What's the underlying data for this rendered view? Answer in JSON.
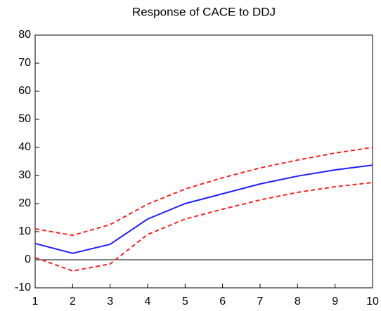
{
  "chart_data": {
    "type": "line",
    "title": "Response of CACE to DDJ",
    "x": [
      1,
      2,
      3,
      4,
      5,
      6,
      7,
      8,
      9,
      10
    ],
    "series": [
      {
        "color": "#1f1fff",
        "dash": false,
        "values": [
          5.8,
          2.3,
          5.5,
          14.5,
          20,
          23.5,
          27,
          29.8,
          32,
          33.7
        ]
      },
      {
        "color": "#ff2020",
        "dash": true,
        "values": [
          11,
          8.7,
          12.5,
          19.8,
          25.2,
          29.2,
          32.7,
          35.5,
          38,
          40
        ]
      },
      {
        "color": "#ff2020",
        "dash": true,
        "values": [
          0.8,
          -4,
          -1.5,
          9,
          14.5,
          18,
          21.3,
          24,
          26,
          27.5
        ]
      }
    ],
    "hline": 0,
    "xlim": [
      1,
      10
    ],
    "xticks": [
      1,
      2,
      3,
      4,
      5,
      6,
      7,
      8,
      9,
      10
    ],
    "ylim": [
      -10,
      80
    ],
    "yticks": [
      -10,
      0,
      10,
      20,
      30,
      40,
      50,
      60,
      70,
      80
    ]
  }
}
